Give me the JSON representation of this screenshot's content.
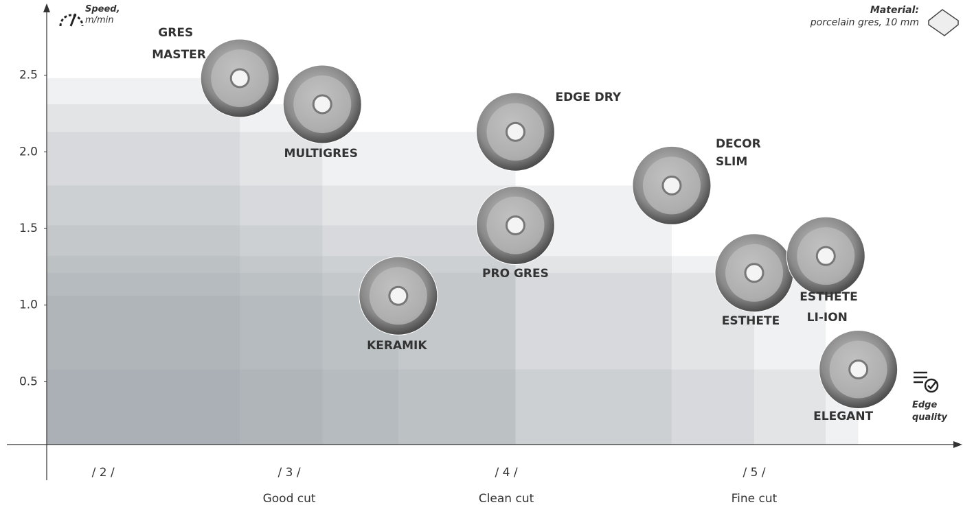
{
  "chart_data": {
    "type": "scatter",
    "ylabel": "Speed,",
    "yunit": "m/min",
    "xlabel": "Edge quality",
    "annotation_title": "Material:",
    "annotation_text": "porcelain gres, 10 mm",
    "xlim": [
      1.74,
      5.94
    ],
    "ylim": [
      0.09,
      2.95
    ],
    "xticks": [
      {
        "value": 2,
        "label": "/ 2 /"
      },
      {
        "value": 3,
        "label": "/ 3 /"
      },
      {
        "value": 4,
        "label": "/ 4 /"
      },
      {
        "value": 5,
        "label": "/ 5 /"
      }
    ],
    "xtick_captions": [
      null,
      "Good cut",
      "Clean cut",
      "Fine cut"
    ],
    "yticks": [
      {
        "value": 0.5,
        "label": "0.5"
      },
      {
        "value": 1.0,
        "label": "1.0"
      },
      {
        "value": 1.5,
        "label": "1.5"
      },
      {
        "value": 2.0,
        "label": "2.0"
      },
      {
        "value": 2.5,
        "label": "2.5"
      }
    ],
    "series": [
      {
        "names": [
          "GRES MASTER",
          "MULTIGRES",
          "EDGE DRY",
          "DECOR SLIM",
          "PRO GRES",
          "KERAMIK",
          "ESTHETE",
          "ESTHETE LI-ION",
          "ELEGANT"
        ],
        "x": [
          2.63,
          3.01,
          3.9,
          4.62,
          3.9,
          3.36,
          5.0,
          5.33,
          5.48
        ],
        "values": [
          2.48,
          2.31,
          2.13,
          1.78,
          1.52,
          1.06,
          1.21,
          1.32,
          0.58
        ],
        "color": "#8d9098"
      }
    ]
  }
}
